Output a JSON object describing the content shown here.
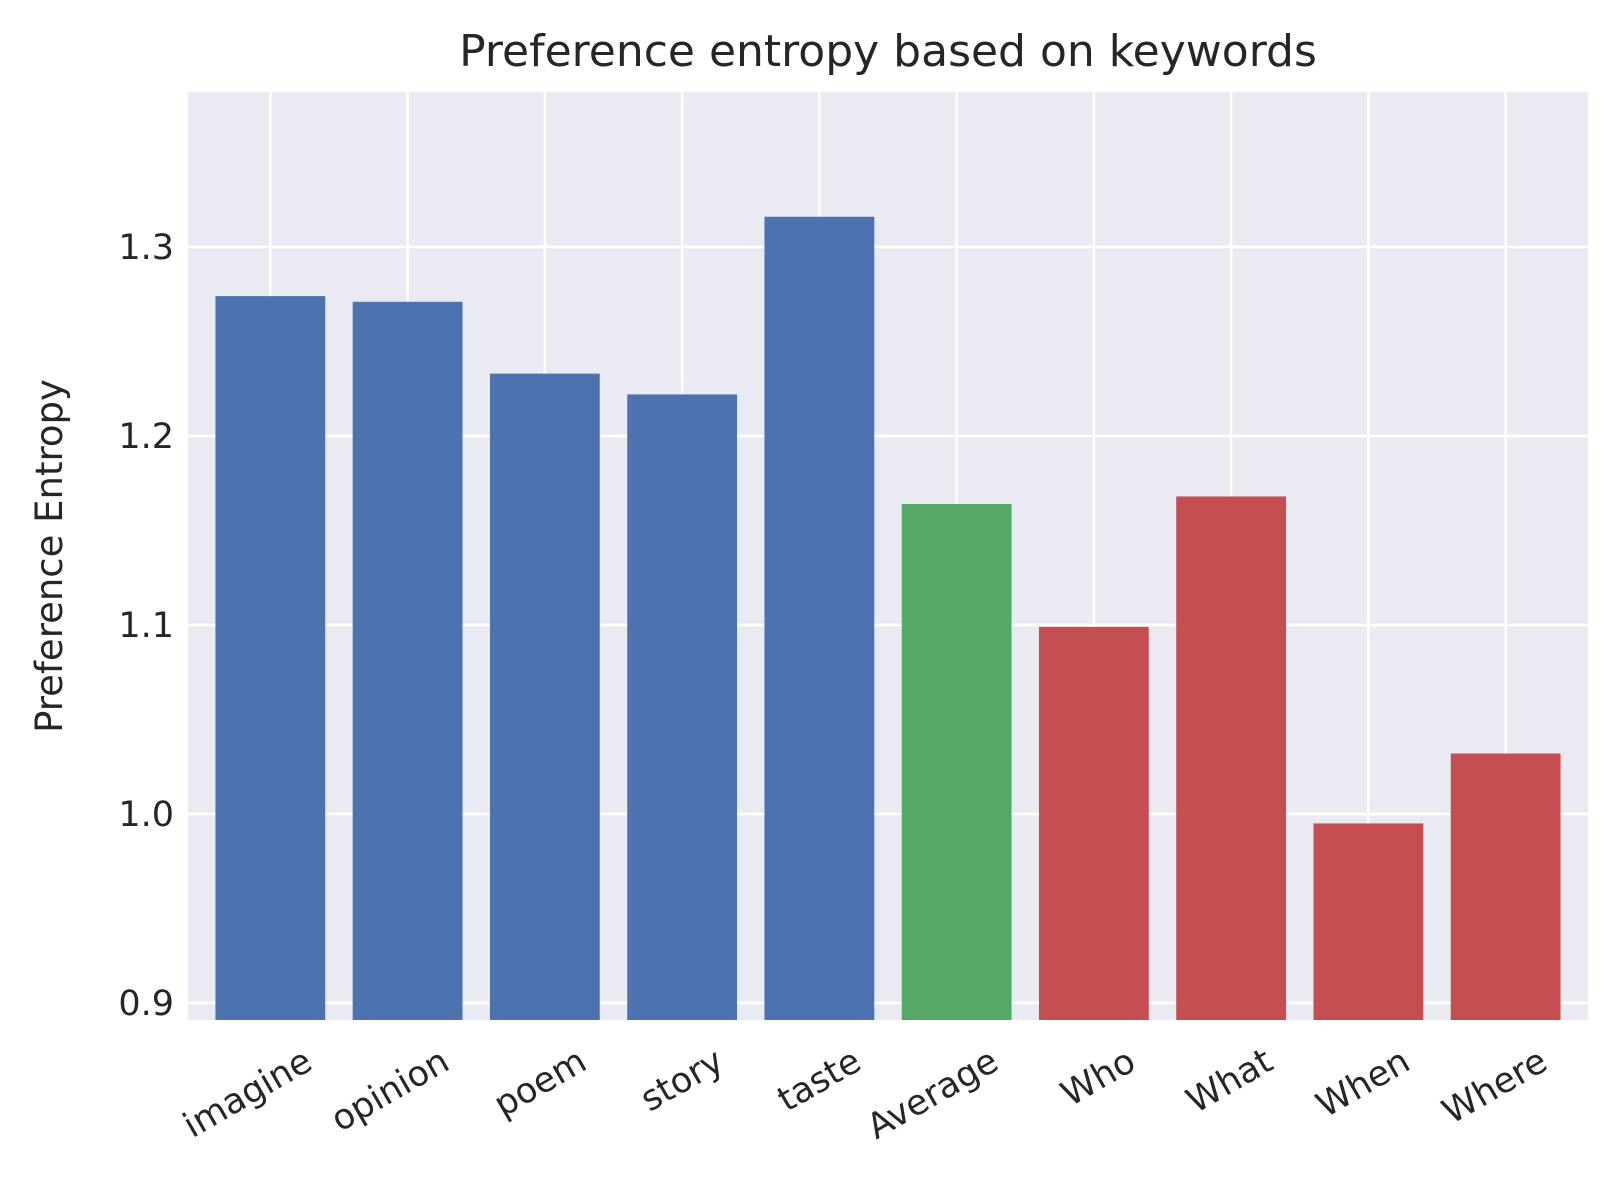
{
  "chart_data": {
    "type": "bar",
    "title": "Preference entropy based on keywords",
    "xlabel": "",
    "ylabel": "Preference Entropy",
    "categories": [
      "imagine",
      "opinion",
      "poem",
      "story",
      "taste",
      "Average",
      "Who",
      "What",
      "When",
      "Where"
    ],
    "values": [
      1.274,
      1.271,
      1.233,
      1.222,
      1.316,
      1.164,
      1.099,
      1.168,
      0.995,
      1.032
    ],
    "bar_colors": [
      "#4c72b0",
      "#4c72b0",
      "#4c72b0",
      "#4c72b0",
      "#4c72b0",
      "#55a868",
      "#c44e52",
      "#c44e52",
      "#c44e52",
      "#c44e52"
    ],
    "ylim": [
      0.891,
      1.382
    ],
    "yticks": [
      0.9,
      1.0,
      1.1,
      1.2,
      1.3
    ],
    "ytick_labels": [
      "0.9",
      "1.0",
      "1.1",
      "1.2",
      "1.3"
    ],
    "grid": true,
    "background_color": "#eaeaf2",
    "grid_color": "#ffffff",
    "xtick_rotation_deg": -30
  }
}
